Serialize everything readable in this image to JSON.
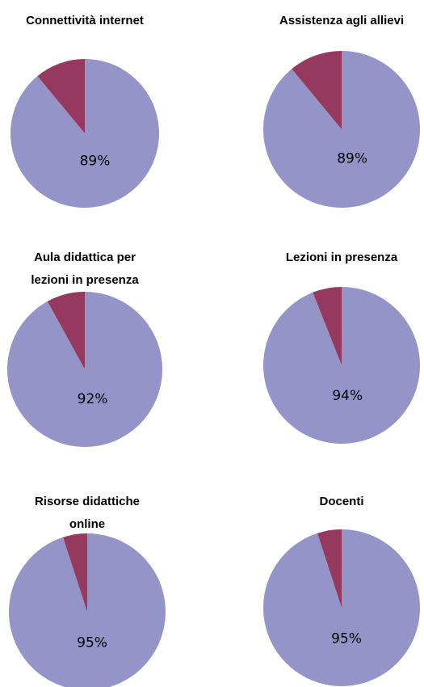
{
  "chart_data": [
    {
      "type": "pie",
      "title": "Connettività internet",
      "categories": [
        null,
        null
      ],
      "values": [
        89,
        11
      ],
      "value_labels": [
        "89%",
        null
      ],
      "colors": [
        "#9494c8",
        "#953a5e"
      ]
    },
    {
      "type": "pie",
      "title": "Assistenza agli allievi",
      "categories": [
        null,
        null
      ],
      "values": [
        89,
        11
      ],
      "value_labels": [
        "89%",
        null
      ],
      "colors": [
        "#9494c8",
        "#953a5e"
      ]
    },
    {
      "type": "pie",
      "title": "Aula didattica per lezioni in presenza",
      "categories": [
        null,
        null
      ],
      "values": [
        92,
        8
      ],
      "value_labels": [
        "92%",
        null
      ],
      "colors": [
        "#9494c8",
        "#953a5e"
      ]
    },
    {
      "type": "pie",
      "title": "Lezioni in presenza",
      "categories": [
        null,
        null
      ],
      "values": [
        94,
        6
      ],
      "value_labels": [
        "94%",
        null
      ],
      "colors": [
        "#9494c8",
        "#953a5e"
      ]
    },
    {
      "type": "pie",
      "title": "Risorse didattiche online",
      "categories": [
        null,
        null
      ],
      "values": [
        95,
        5
      ],
      "value_labels": [
        "95%",
        null
      ],
      "colors": [
        "#9494c8",
        "#953a5e"
      ]
    },
    {
      "type": "pie",
      "title": "Docenti",
      "categories": [
        null,
        null
      ],
      "values": [
        95,
        5
      ],
      "value_labels": [
        "95%",
        null
      ],
      "colors": [
        "#9494c8",
        "#953a5e"
      ]
    }
  ]
}
